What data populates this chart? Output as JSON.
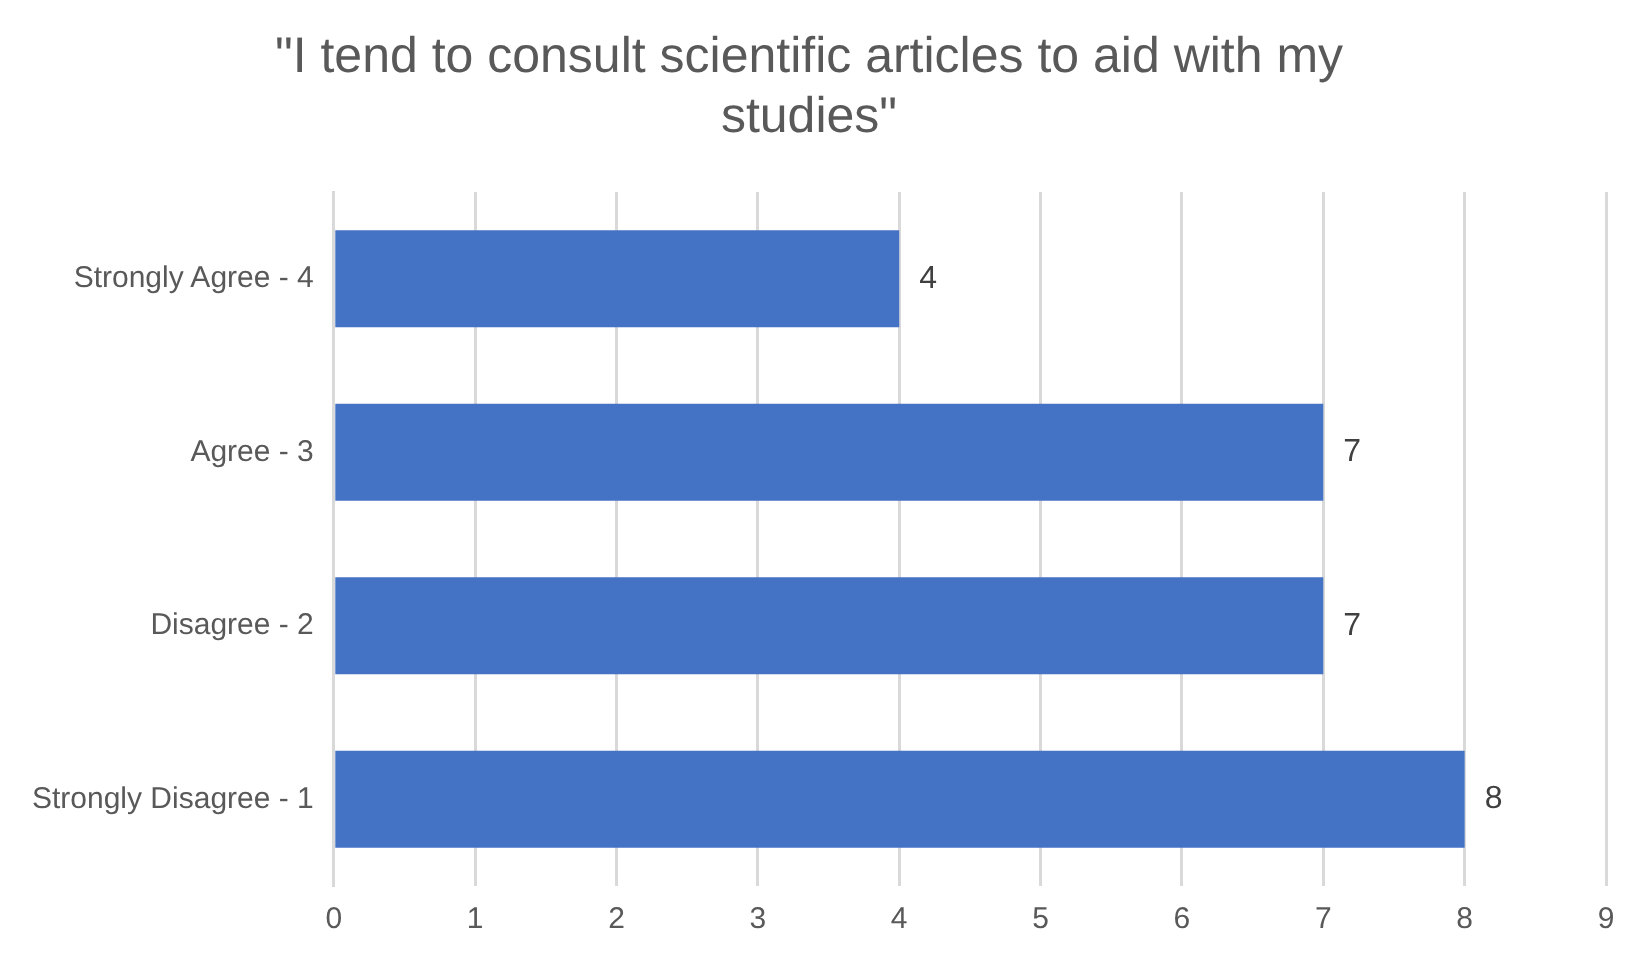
{
  "chart_data": {
    "type": "bar",
    "orientation": "horizontal",
    "title": "\"I tend to consult scientific articles to aid with my studies\"",
    "categories": [
      "Strongly Agree - 4",
      "Agree - 3",
      "Disagree - 2",
      "Strongly Disagree - 1"
    ],
    "values": [
      4,
      7,
      7,
      8
    ],
    "color": "#4472c4",
    "xlim": [
      0,
      9
    ],
    "xticks": [
      0,
      1,
      2,
      3,
      4,
      5,
      6,
      7,
      8,
      9
    ],
    "grid": "x",
    "data_labels": true,
    "legend": false
  }
}
